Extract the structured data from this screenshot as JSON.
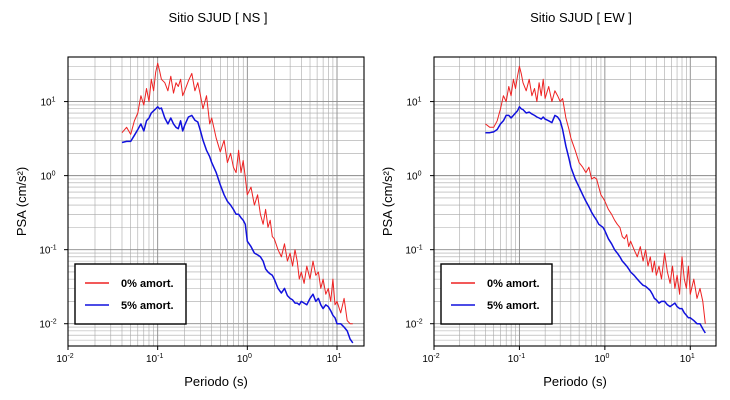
{
  "chart_data": [
    {
      "type": "line",
      "title": "Sitio SJUD [ NS ]",
      "xlabel": "Periodo (s)",
      "ylabel": "PSA (cm/s²)",
      "xscale": "log",
      "yscale": "log",
      "xlim": [
        0.01,
        20
      ],
      "ylim": [
        0.005,
        40
      ],
      "grid": true,
      "legend_position": "bottom-left",
      "x_ticks": [
        {
          "value": 0.01,
          "base": "10",
          "exp": "-2"
        },
        {
          "value": 0.1,
          "base": "10",
          "exp": "-1"
        },
        {
          "value": 1,
          "base": "10",
          "exp": "0"
        },
        {
          "value": 10,
          "base": "10",
          "exp": "1"
        }
      ],
      "y_ticks": [
        {
          "value": 0.01,
          "base": "10",
          "exp": "-2"
        },
        {
          "value": 0.1,
          "base": "10",
          "exp": "-1"
        },
        {
          "value": 1,
          "base": "10",
          "exp": "0"
        },
        {
          "value": 10,
          "base": "10",
          "exp": "1"
        }
      ],
      "series": [
        {
          "name": "0% amort.",
          "color": "#ee2222",
          "x": [
            0.04,
            0.045,
            0.05,
            0.055,
            0.06,
            0.065,
            0.07,
            0.075,
            0.08,
            0.085,
            0.09,
            0.095,
            0.1,
            0.105,
            0.11,
            0.12,
            0.13,
            0.14,
            0.15,
            0.16,
            0.17,
            0.18,
            0.19,
            0.2,
            0.22,
            0.24,
            0.26,
            0.28,
            0.3,
            0.32,
            0.35,
            0.38,
            0.4,
            0.45,
            0.5,
            0.55,
            0.6,
            0.65,
            0.7,
            0.75,
            0.8,
            0.85,
            0.9,
            0.95,
            1.0,
            1.1,
            1.2,
            1.3,
            1.4,
            1.5,
            1.6,
            1.7,
            1.8,
            1.9,
            2.0,
            2.2,
            2.4,
            2.6,
            2.8,
            3.0,
            3.2,
            3.4,
            3.6,
            3.8,
            4.0,
            4.3,
            4.6,
            5.0,
            5.4,
            5.8,
            6.2,
            6.6,
            7.0,
            7.5,
            8.0,
            8.5,
            9.0,
            9.5,
            10,
            11,
            12,
            13,
            14,
            15
          ],
          "y": [
            3.8,
            4.5,
            3.6,
            5.5,
            7,
            12,
            9,
            15,
            10,
            20,
            14,
            25,
            33,
            26,
            20,
            18,
            14,
            22,
            13,
            18,
            16,
            20,
            12,
            14,
            19,
            24,
            14,
            18,
            12,
            8,
            12,
            5,
            6,
            3.2,
            2.1,
            3,
            1.5,
            2,
            1.3,
            1.1,
            2.2,
            1.1,
            1.6,
            0.95,
            0.55,
            0.7,
            0.4,
            0.55,
            0.3,
            0.22,
            0.35,
            0.2,
            0.25,
            0.15,
            0.14,
            0.1,
            0.08,
            0.12,
            0.07,
            0.09,
            0.06,
            0.1,
            0.07,
            0.04,
            0.05,
            0.035,
            0.06,
            0.04,
            0.07,
            0.045,
            0.05,
            0.03,
            0.04,
            0.025,
            0.03,
            0.02,
            0.04,
            0.018,
            0.02,
            0.014,
            0.022,
            0.011,
            0.01,
            0.01
          ]
        },
        {
          "name": "5% amort.",
          "color": "#1111dd",
          "x": [
            0.04,
            0.045,
            0.05,
            0.055,
            0.06,
            0.065,
            0.07,
            0.075,
            0.08,
            0.085,
            0.09,
            0.095,
            0.1,
            0.105,
            0.11,
            0.12,
            0.13,
            0.14,
            0.15,
            0.16,
            0.17,
            0.18,
            0.19,
            0.2,
            0.22,
            0.24,
            0.26,
            0.28,
            0.3,
            0.32,
            0.35,
            0.38,
            0.4,
            0.45,
            0.5,
            0.55,
            0.6,
            0.65,
            0.7,
            0.75,
            0.8,
            0.85,
            0.9,
            0.95,
            1.0,
            1.1,
            1.2,
            1.3,
            1.4,
            1.5,
            1.6,
            1.7,
            1.8,
            1.9,
            2.0,
            2.2,
            2.4,
            2.6,
            2.8,
            3.0,
            3.2,
            3.4,
            3.6,
            3.8,
            4.0,
            4.3,
            4.6,
            5.0,
            5.4,
            5.8,
            6.2,
            6.6,
            7.0,
            7.5,
            8.0,
            8.5,
            9.0,
            9.5,
            10,
            11,
            12,
            13,
            14,
            15
          ],
          "y": [
            2.8,
            2.9,
            2.9,
            3.5,
            4.2,
            5,
            4,
            5.5,
            6,
            7,
            7.5,
            8,
            8.5,
            8,
            8.2,
            6,
            5,
            6,
            5,
            4.5,
            4.3,
            5.5,
            4,
            4.8,
            6.2,
            6.5,
            5.6,
            5.3,
            4,
            3,
            2.2,
            1.8,
            1.5,
            1.1,
            0.75,
            0.55,
            0.45,
            0.4,
            0.35,
            0.3,
            0.3,
            0.27,
            0.25,
            0.22,
            0.13,
            0.11,
            0.09,
            0.085,
            0.08,
            0.07,
            0.055,
            0.05,
            0.047,
            0.045,
            0.04,
            0.03,
            0.026,
            0.03,
            0.024,
            0.022,
            0.021,
            0.019,
            0.019,
            0.018,
            0.02,
            0.019,
            0.018,
            0.022,
            0.025,
            0.02,
            0.022,
            0.018,
            0.016,
            0.018,
            0.017,
            0.015,
            0.013,
            0.012,
            0.01,
            0.01,
            0.009,
            0.008,
            0.0062,
            0.0055
          ]
        }
      ]
    },
    {
      "type": "line",
      "title": "Sitio SJUD [ EW ]",
      "xlabel": "Periodo (s)",
      "ylabel": "PSA (cm/s²)",
      "xscale": "log",
      "yscale": "log",
      "xlim": [
        0.01,
        20
      ],
      "ylim": [
        0.005,
        40
      ],
      "grid": true,
      "legend_position": "bottom-left",
      "x_ticks": [
        {
          "value": 0.01,
          "base": "10",
          "exp": "-2"
        },
        {
          "value": 0.1,
          "base": "10",
          "exp": "-1"
        },
        {
          "value": 1,
          "base": "10",
          "exp": "0"
        },
        {
          "value": 10,
          "base": "10",
          "exp": "1"
        }
      ],
      "y_ticks": [
        {
          "value": 0.01,
          "base": "10",
          "exp": "-2"
        },
        {
          "value": 0.1,
          "base": "10",
          "exp": "-1"
        },
        {
          "value": 1,
          "base": "10",
          "exp": "0"
        },
        {
          "value": 10,
          "base": "10",
          "exp": "1"
        }
      ],
      "series": [
        {
          "name": "0% amort.",
          "color": "#ee2222",
          "x": [
            0.04,
            0.045,
            0.05,
            0.055,
            0.06,
            0.065,
            0.07,
            0.075,
            0.08,
            0.085,
            0.09,
            0.095,
            0.1,
            0.105,
            0.11,
            0.12,
            0.13,
            0.14,
            0.15,
            0.16,
            0.17,
            0.18,
            0.19,
            0.2,
            0.22,
            0.24,
            0.26,
            0.28,
            0.3,
            0.32,
            0.35,
            0.38,
            0.4,
            0.45,
            0.5,
            0.55,
            0.6,
            0.65,
            0.7,
            0.75,
            0.8,
            0.85,
            0.9,
            0.95,
            1.0,
            1.1,
            1.2,
            1.3,
            1.4,
            1.5,
            1.6,
            1.7,
            1.8,
            1.9,
            2.0,
            2.2,
            2.4,
            2.6,
            2.8,
            3.0,
            3.2,
            3.4,
            3.6,
            3.8,
            4.0,
            4.3,
            4.6,
            5.0,
            5.4,
            5.8,
            6.2,
            6.6,
            7.0,
            7.5,
            8.0,
            8.5,
            9.0,
            9.5,
            10,
            11,
            12,
            13,
            14,
            15
          ],
          "y": [
            5,
            4.5,
            4.5,
            5.5,
            8,
            12,
            10,
            16,
            12,
            20,
            15,
            22,
            30,
            24,
            18,
            14,
            20,
            12,
            15,
            10,
            18,
            12,
            20,
            11,
            16,
            10,
            14,
            12,
            10,
            11,
            6,
            4.2,
            3.2,
            2.2,
            1.5,
            1.3,
            1.1,
            1.3,
            0.9,
            0.95,
            0.9,
            0.7,
            0.55,
            0.5,
            0.45,
            0.35,
            0.3,
            0.25,
            0.22,
            0.2,
            0.15,
            0.14,
            0.16,
            0.11,
            0.13,
            0.1,
            0.08,
            0.11,
            0.07,
            0.1,
            0.06,
            0.08,
            0.05,
            0.07,
            0.045,
            0.06,
            0.04,
            0.09,
            0.05,
            0.035,
            0.06,
            0.03,
            0.045,
            0.025,
            0.08,
            0.04,
            0.03,
            0.06,
            0.025,
            0.04,
            0.022,
            0.03,
            0.02,
            0.01
          ]
        },
        {
          "name": "5% amort.",
          "color": "#1111dd",
          "x": [
            0.04,
            0.045,
            0.05,
            0.055,
            0.06,
            0.065,
            0.07,
            0.075,
            0.08,
            0.085,
            0.09,
            0.095,
            0.1,
            0.105,
            0.11,
            0.12,
            0.13,
            0.14,
            0.15,
            0.16,
            0.17,
            0.18,
            0.19,
            0.2,
            0.22,
            0.24,
            0.26,
            0.28,
            0.3,
            0.32,
            0.35,
            0.38,
            0.4,
            0.45,
            0.5,
            0.55,
            0.6,
            0.65,
            0.7,
            0.75,
            0.8,
            0.85,
            0.9,
            0.95,
            1.0,
            1.1,
            1.2,
            1.3,
            1.4,
            1.5,
            1.6,
            1.7,
            1.8,
            1.9,
            2.0,
            2.2,
            2.4,
            2.6,
            2.8,
            3.0,
            3.2,
            3.4,
            3.6,
            3.8,
            4.0,
            4.3,
            4.6,
            5.0,
            5.4,
            5.8,
            6.2,
            6.6,
            7.0,
            7.5,
            8.0,
            8.5,
            9.0,
            9.5,
            10,
            11,
            12,
            13,
            14,
            15
          ],
          "y": [
            3.8,
            3.8,
            3.9,
            4.2,
            5,
            5.5,
            6.5,
            6.5,
            6,
            6.5,
            7,
            7.5,
            8.5,
            8,
            7.8,
            7,
            7.2,
            6.8,
            6.5,
            6.2,
            6,
            5.8,
            6.2,
            5.8,
            5.5,
            5.2,
            6.5,
            6.2,
            5.5,
            4.2,
            2.5,
            1.7,
            1.3,
            0.9,
            0.7,
            0.55,
            0.45,
            0.38,
            0.32,
            0.28,
            0.25,
            0.22,
            0.21,
            0.2,
            0.18,
            0.14,
            0.12,
            0.1,
            0.09,
            0.08,
            0.07,
            0.065,
            0.06,
            0.055,
            0.05,
            0.045,
            0.04,
            0.036,
            0.033,
            0.032,
            0.03,
            0.028,
            0.025,
            0.022,
            0.021,
            0.019,
            0.02,
            0.02,
            0.018,
            0.017,
            0.018,
            0.019,
            0.017,
            0.016,
            0.016,
            0.014,
            0.013,
            0.012,
            0.012,
            0.011,
            0.01,
            0.01,
            0.0085,
            0.0075
          ]
        }
      ]
    }
  ]
}
